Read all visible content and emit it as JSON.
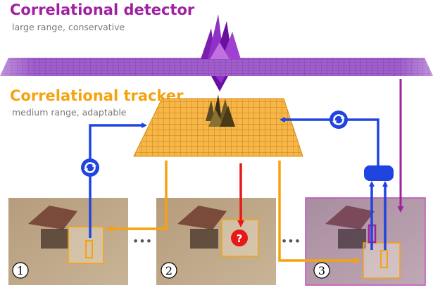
{
  "detector": {
    "title": "Correlational detector",
    "subtitle": "large range, conservative",
    "color": "#a020a0"
  },
  "tracker": {
    "title": "Correlational tracker",
    "subtitle": "medium range, adaptable",
    "color": "#f5a20f"
  },
  "frames": [
    {
      "label": "1"
    },
    {
      "label": "2",
      "marker": "?"
    },
    {
      "label": "3"
    }
  ],
  "ellipsis": "•••",
  "colors": {
    "update_arrow": "#1f44e0",
    "tracker_arrow": "#f5a20f",
    "detector_arrow": "#a020a0",
    "failure_arrow": "#e61818"
  },
  "icons": [
    "update-cycle-icon",
    "question-mark-icon",
    "combiner-icon"
  ]
}
